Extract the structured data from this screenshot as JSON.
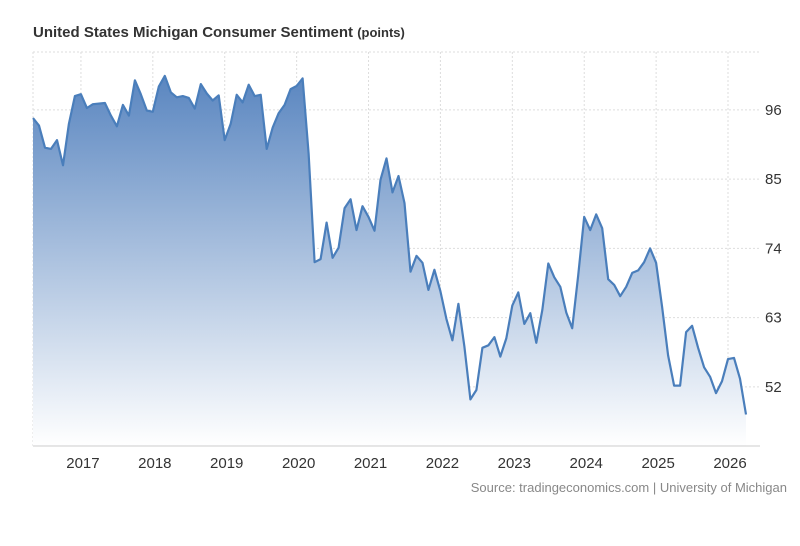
{
  "chart_data": {
    "type": "area",
    "title": "United States Michigan Consumer Sentiment",
    "unit": "(points)",
    "source": "Source: tradingeconomics.com | University of Michigan",
    "start": "2016-05",
    "frequency": "monthly",
    "x_ticks": [
      "2017",
      "2018",
      "2019",
      "2020",
      "2021",
      "2022",
      "2023",
      "2024",
      "2025",
      "2026"
    ],
    "y_ticks": [
      52,
      63,
      74,
      85,
      96
    ],
    "ylim": [
      42.6,
      105.2
    ],
    "grid": true,
    "line_color": "#4a7ebb",
    "fill_top_color": "#5a86c0",
    "fill_bottom_color": "#ffffff",
    "values": [
      94.7,
      93.5,
      90.0,
      89.8,
      91.2,
      87.2,
      93.8,
      98.2,
      98.5,
      96.3,
      96.9,
      97.0,
      97.1,
      95.1,
      93.4,
      96.8,
      95.1,
      100.7,
      98.5,
      95.9,
      95.7,
      99.7,
      101.4,
      98.8,
      98.0,
      98.2,
      97.9,
      96.2,
      100.1,
      98.6,
      97.5,
      98.3,
      91.2,
      93.8,
      98.4,
      97.2,
      100.0,
      98.2,
      98.4,
      89.8,
      93.2,
      95.5,
      96.8,
      99.3,
      99.8,
      101.0,
      89.1,
      71.8,
      72.3,
      78.1,
      72.5,
      74.1,
      80.4,
      81.8,
      76.9,
      80.7,
      79.0,
      76.8,
      84.9,
      88.3,
      82.9,
      85.5,
      81.2,
      70.3,
      72.8,
      71.7,
      67.4,
      70.6,
      67.2,
      62.8,
      59.4,
      65.2,
      58.4,
      50.0,
      51.5,
      58.2,
      58.6,
      59.9,
      56.8,
      59.7,
      64.9,
      67.0,
      62.0,
      63.7,
      59.0,
      64.2,
      71.6,
      69.4,
      67.9,
      63.8,
      61.3,
      69.7,
      79.0,
      76.9,
      79.4,
      77.2,
      69.1,
      68.2,
      66.4,
      67.9,
      70.1,
      70.5,
      71.8,
      74.0,
      71.7,
      64.7,
      57.0,
      52.2,
      52.2,
      60.7,
      61.7,
      58.2,
      55.1,
      53.6,
      51.0,
      52.9,
      56.4,
      56.6,
      53.3,
      47.6
    ]
  }
}
